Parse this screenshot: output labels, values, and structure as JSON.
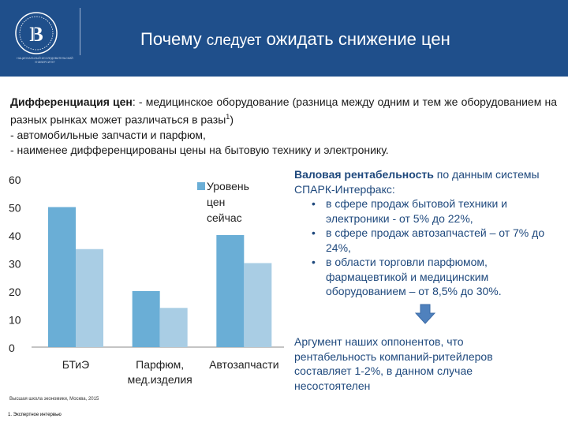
{
  "header": {
    "title_part1": "Почему ",
    "title_part2": "следует",
    "title_part3": " ожидать снижение цен",
    "logo_caption": "НАЦИОНАЛЬНЫЙ ИССЛЕДОВАТЕЛЬСКИЙ УНИВЕРСИТЕТ",
    "brand_color": "#1f4f8b"
  },
  "intro": {
    "label": "Дифференциация цен",
    "line1_rest": ": - медицинское оборудование (разница между одним и тем же оборудованием на разных рынках может различаться в разы",
    "footnote_mark": "1",
    "line1_end": ")",
    "line2": "-   автомобильные запчасти и парфюм,",
    "line3": "-   наименее дифференцированы цены на бытовую технику и электронику."
  },
  "chart_data": {
    "type": "bar",
    "categories": [
      "БТиЭ",
      "Парфюм, мед.изделия",
      "Автозапчасти"
    ],
    "category_lines": [
      [
        "БТиЭ"
      ],
      [
        "Парфюм,",
        "мед.изделия"
      ],
      [
        "Автозапчасти"
      ]
    ],
    "series": [
      {
        "name": "Уровень цен сейчас",
        "legend_lines": [
          "Уровень",
          "цен",
          "сейчас"
        ],
        "values": [
          50,
          20,
          40
        ],
        "color": "#6aaed6"
      },
      {
        "name": "",
        "values": [
          35,
          14,
          30
        ],
        "color": "#a9cde4"
      }
    ],
    "ylim": [
      0,
      60
    ],
    "yticks": [
      0,
      10,
      20,
      30,
      40,
      50,
      60
    ],
    "legend_position": "top-right",
    "grid": false
  },
  "right_panel": {
    "heading_bold": "Валовая рентабельность",
    "heading_rest": " по данным системы СПАРК-Интерфакс:",
    "bullets": [
      "в сфере продаж бытовой техники и электроники - от 5% до 22%,",
      "в сфере продаж автозапчастей – от 7% до 24%,",
      "в области торговли парфюмом, фармацевтикой и медицинским оборудованием – от 8,5% до 30%."
    ],
    "arrow_color": "#4f81bd",
    "argument": "Аргумент наших оппонентов, что рентабельность компаний-ритейлеров составляет 1-2%, в данном случае несостоятелен"
  },
  "footer": {
    "text": "Высшая школа экономики, Москва, 2015",
    "footnote": "1. Экспертное интервью"
  }
}
